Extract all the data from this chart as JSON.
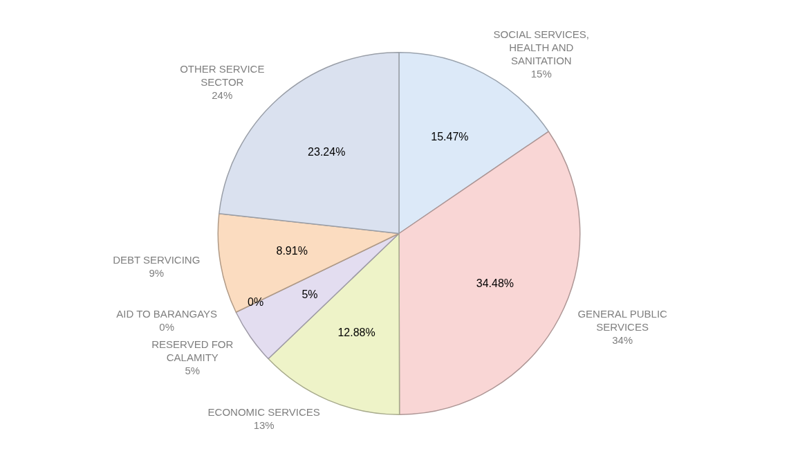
{
  "chart_data": {
    "type": "pie",
    "categories": [
      "SOCIAL SERVICES, HEALTH AND SANITATION",
      "GENERAL PUBLIC SERVICES",
      "ECONOMIC SERVICES",
      "RESERVED FOR CALAMITY",
      "AID TO BARANGAYS",
      "DEBT SERVICING",
      "OTHER SERVICE SECTOR"
    ],
    "values": [
      15.47,
      34.48,
      12.88,
      5,
      0,
      8.91,
      23.24
    ],
    "colors": [
      "#dce9f8",
      "#f9d6d5",
      "#eef3c8",
      "#e3ddf0",
      "#dde6c4",
      "#fbdcc0",
      "#dae1ef"
    ],
    "value_labels": [
      "15.47%",
      "34.48%",
      "12.88%",
      "5%",
      "0%",
      "8.91%",
      "23.24%"
    ],
    "annotations": [
      "15%",
      "34%",
      "13%",
      "5%",
      "0%",
      "9%",
      "24%"
    ],
    "legend": false
  }
}
